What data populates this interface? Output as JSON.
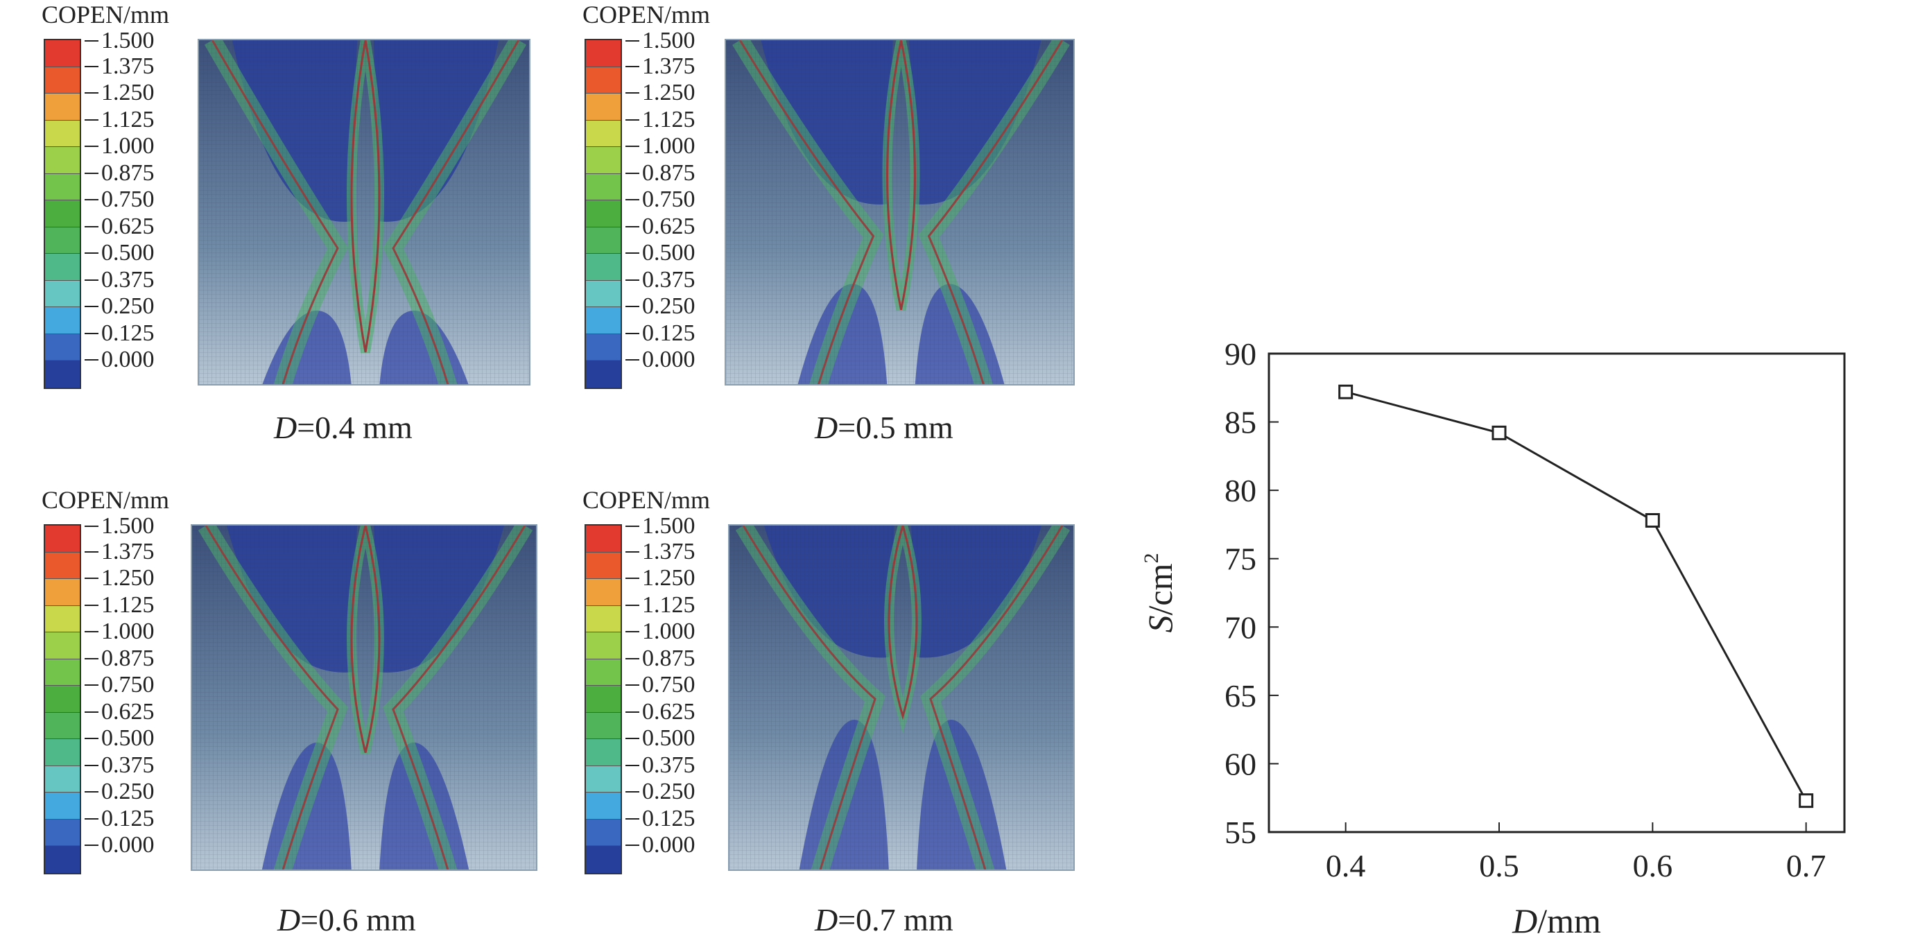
{
  "panels": [
    {
      "title": "COPEN/mm",
      "var": "D",
      "caption": "=0.4 mm",
      "scale": 0.0
    },
    {
      "title": "COPEN/mm",
      "var": "D",
      "caption": "=0.5 mm",
      "scale": 0.35
    },
    {
      "title": "COPEN/mm",
      "var": "D",
      "caption": "=0.6 mm",
      "scale": 0.7
    },
    {
      "title": "COPEN/mm",
      "var": "D",
      "caption": "=0.7 mm",
      "scale": 1.0
    }
  ],
  "colorbar": {
    "labels": [
      "1.500",
      "1.375",
      "1.250",
      "1.125",
      "1.000",
      "0.875",
      "0.750",
      "0.625",
      "0.500",
      "0.375",
      "0.250",
      "0.125",
      "0.000"
    ],
    "colors": [
      "#e23a2e",
      "#e9592c",
      "#f0a03a",
      "#c9d84a",
      "#9cd04b",
      "#73c44b",
      "#4cae3f",
      "#50b45a",
      "#4fb98a",
      "#66c7c2",
      "#43a9df",
      "#3a67c0",
      "#263f9a"
    ]
  },
  "chart_data": {
    "type": "line",
    "x": [
      0.4,
      0.5,
      0.6,
      0.7
    ],
    "values": [
      87.2,
      84.2,
      77.8,
      57.3
    ],
    "xlabel_var": "D",
    "xlabel_unit": "/mm",
    "ylabel_var": "S",
    "ylabel_unit": "/cm",
    "ylabel_sup": "2",
    "xlim": [
      0.35,
      0.725
    ],
    "ylim": [
      55,
      90
    ],
    "xticks": [
      "0.4",
      "0.5",
      "0.6",
      "0.7"
    ],
    "yticks": [
      "55",
      "60",
      "65",
      "70",
      "75",
      "80",
      "85",
      "90"
    ],
    "marker": "square",
    "grid": false
  }
}
